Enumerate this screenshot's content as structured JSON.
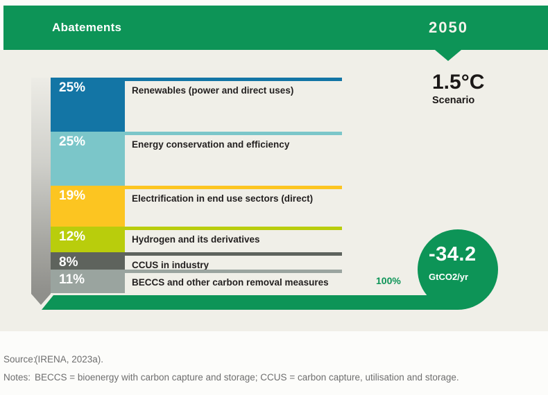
{
  "header": {
    "title": "Abatements",
    "year": "2050"
  },
  "scenario": {
    "temperature": "1.5°C",
    "label": "Scenario"
  },
  "chart_data": {
    "type": "bar",
    "subtype": "stacked-percentage-column",
    "title": "Abatements",
    "year": "2050",
    "scenario": "1.5°C Scenario",
    "unit": "%",
    "categories": [
      "Renewables (power and direct uses)",
      "Energy conservation and efficiency",
      "Electrification in end use sectors (direct)",
      "Hydrogen and its derivatives",
      "CCUS in industry",
      "BECCS and other carbon removal measures"
    ],
    "values": [
      25,
      25,
      19,
      12,
      8,
      11
    ],
    "segments": [
      {
        "label": "Renewables (power and direct uses)",
        "pct": "25%",
        "value": 25,
        "color": "#1375a5"
      },
      {
        "label": "Energy conservation and efficiency",
        "pct": "25%",
        "value": 25,
        "color": "#7bc6c9"
      },
      {
        "label": "Electrification in end use sectors (direct)",
        "pct": "19%",
        "value": 19,
        "color": "#fcc521"
      },
      {
        "label": "Hydrogen and its derivatives",
        "pct": "12%",
        "value": 12,
        "color": "#b9cd0c"
      },
      {
        "label": "CCUS in industry",
        "pct": "8%",
        "value": 8,
        "color": "#5e635d"
      },
      {
        "label": "BECCS and other carbon removal measures",
        "pct": "11%",
        "value": 11,
        "color": "#9aa49f"
      }
    ],
    "total_label": "100%",
    "result_bubble": {
      "value": "-34.2",
      "unit": "GtCO2/yr"
    }
  },
  "footer": {
    "source_label": "Source:",
    "source_text": "(IRENA, 2023a).",
    "notes_label": "Notes:",
    "notes_text": "BECCS = bioenergy with carbon capture and storage; CCUS = carbon capture, utilisation and storage."
  },
  "colors": {
    "brand_green": "#0d9457",
    "panel_background": "#f0efe8",
    "label_text": "#221f1f",
    "footer_text": "#6e6e6e"
  }
}
